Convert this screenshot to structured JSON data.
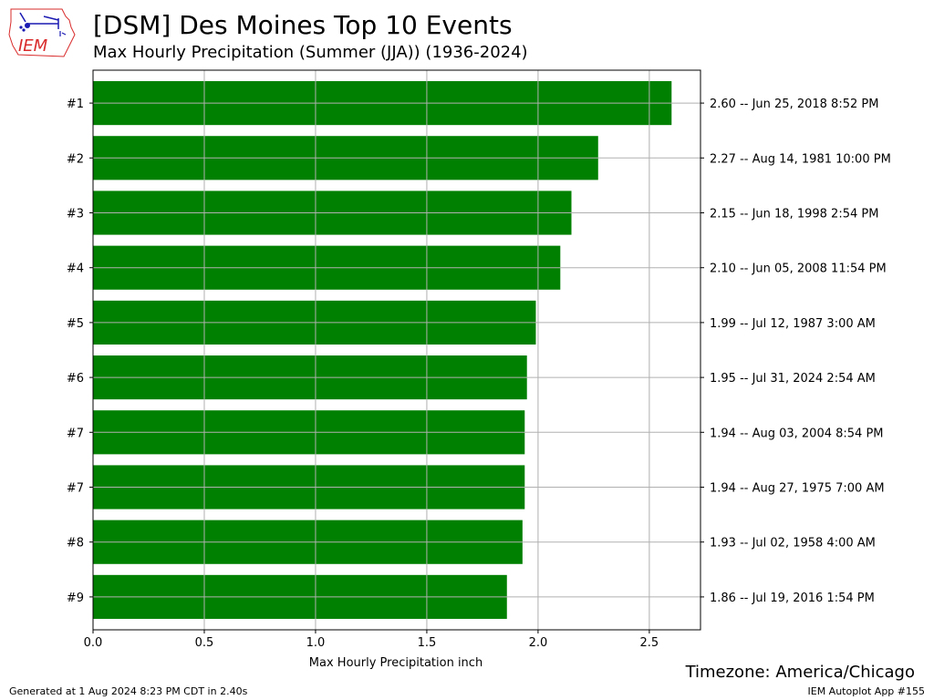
{
  "logo": {
    "text": "IEM"
  },
  "header": {
    "title": "[DSM] Des Moines Top 10 Events",
    "subtitle": "Max Hourly Precipitation  (Summer (JJA)) (1936-2024)"
  },
  "footer": {
    "timezone": "Timezone: America/Chicago",
    "generated": "Generated at 1 Aug 2024 8:23 PM CDT in 2.40s",
    "app_id": "IEM Autoplot App #155"
  },
  "colors": {
    "bar": "#008000",
    "grid": "#b0b0b0",
    "logo_red": "#d92b2b",
    "logo_blue": "#1a1ab3"
  },
  "chart_data": {
    "type": "bar",
    "orientation": "horizontal",
    "categories": [
      "#1",
      "#2",
      "#3",
      "#4",
      "#5",
      "#6",
      "#7",
      "#7",
      "#8",
      "#9"
    ],
    "values": [
      2.6,
      2.27,
      2.15,
      2.1,
      1.99,
      1.95,
      1.94,
      1.94,
      1.93,
      1.86
    ],
    "right_labels": [
      "2.60 -- Jun 25, 2018 8:52 PM",
      "2.27 -- Aug 14, 1981 10:00 PM",
      "2.15 -- Jun 18, 1998 2:54 PM",
      "2.10 -- Jun 05, 2008 11:54 PM",
      "1.99 -- Jul 12, 1987 3:00 AM",
      "1.95 -- Jul 31, 2024 2:54 AM",
      "1.94 -- Aug 03, 2004 8:54 PM",
      "1.94 -- Aug 27, 1975 7:00 AM",
      "1.93 -- Jul 02, 1958 4:00 AM",
      "1.86 -- Jul 19, 2016 1:54 PM"
    ],
    "xlabel": "Max Hourly Precipitation inch",
    "ylabel": "",
    "xlim": [
      0,
      2.73
    ],
    "xticks": [
      0,
      0.5,
      1.0,
      1.5,
      2.0,
      2.5
    ],
    "xtick_labels": [
      "0.0",
      "0.5",
      "1.0",
      "1.5",
      "2.0",
      "2.5"
    ],
    "grid": true
  }
}
